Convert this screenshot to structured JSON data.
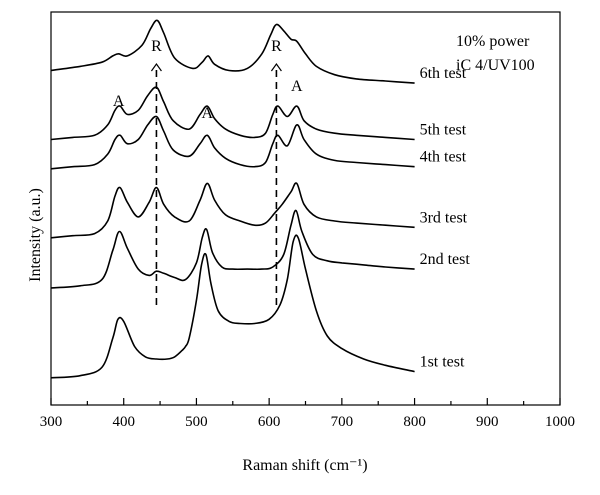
{
  "chart_data": {
    "type": "line",
    "xlabel": "Raman shift (cm⁻¹)",
    "ylabel": "Intensity (a.u.)",
    "xlim": [
      300,
      1000
    ],
    "x_ticks": [
      "300",
      "400",
      "500",
      "600",
      "700",
      "800",
      "900",
      "1000"
    ],
    "y_ticks": "none",
    "grid": false,
    "annotation_text": [
      "10% power",
      "iC 4/UV100"
    ],
    "peak_markers": [
      {
        "label": "A",
        "x": 393
      },
      {
        "label": "R",
        "x": 445
      },
      {
        "label": "A",
        "x": 515
      },
      {
        "label": "R",
        "x": 610
      },
      {
        "label": "A",
        "x": 638
      }
    ],
    "reference_lines_x": [
      445,
      610
    ],
    "series": [
      {
        "name": "1st test",
        "x": [
          300,
          340,
          370,
          385,
          392,
          400,
          415,
          430,
          445,
          460,
          470,
          480,
          485,
          490,
          500,
          507,
          513,
          520,
          530,
          545,
          560,
          580,
          600,
          615,
          625,
          633,
          640,
          650,
          665,
          680,
          700,
          730,
          760,
          800
        ],
        "y": [
          3,
          4,
          8,
          22,
          31,
          30,
          18,
          13,
          12,
          12,
          13,
          16,
          18,
          22,
          40,
          57,
          62,
          48,
          35,
          30,
          29,
          29,
          31,
          38,
          50,
          68,
          70,
          55,
          35,
          23,
          17,
          12,
          9,
          6
        ]
      },
      {
        "name": "2nd test",
        "x": [
          300,
          340,
          370,
          385,
          394,
          405,
          420,
          435,
          445,
          455,
          470,
          485,
          500,
          508,
          514,
          522,
          535,
          550,
          570,
          590,
          605,
          620,
          630,
          637,
          645,
          660,
          680,
          700,
          730,
          760,
          800
        ],
        "y": [
          46,
          47,
          50,
          64,
          73,
          65,
          55,
          52,
          54,
          53,
          51,
          50,
          58,
          70,
          74,
          63,
          56,
          55,
          55,
          55,
          56,
          62,
          76,
          83,
          73,
          62,
          59,
          58,
          57,
          56,
          55
        ]
      },
      {
        "name": "3rd test",
        "x": [
          300,
          330,
          360,
          378,
          388,
          395,
          405,
          420,
          435,
          445,
          455,
          470,
          490,
          505,
          515,
          525,
          540,
          560,
          580,
          595,
          608,
          618,
          630,
          638,
          648,
          665,
          690,
          720,
          760,
          800
        ],
        "y": [
          70,
          71,
          72,
          78,
          90,
          94,
          87,
          80,
          87,
          94,
          86,
          80,
          78,
          88,
          96,
          88,
          81,
          78,
          76,
          77,
          82,
          86,
          92,
          96,
          86,
          80,
          78,
          77,
          76,
          75
        ]
      },
      {
        "name": "4th test",
        "x": [
          300,
          330,
          360,
          378,
          388,
          395,
          405,
          420,
          433,
          445,
          455,
          468,
          490,
          505,
          515,
          525,
          540,
          560,
          580,
          595,
          605,
          612,
          625,
          638,
          648,
          665,
          690,
          720,
          760,
          800
        ],
        "y": [
          103,
          104,
          105,
          110,
          117,
          119,
          115,
          117,
          124,
          128,
          121,
          112,
          109,
          115,
          119,
          113,
          108,
          105,
          104,
          106,
          115,
          119,
          114,
          124,
          117,
          110,
          107,
          106,
          105,
          104
        ]
      },
      {
        "name": "5th test",
        "x": [
          300,
          330,
          360,
          378,
          388,
          395,
          405,
          420,
          433,
          445,
          455,
          468,
          490,
          505,
          515,
          525,
          540,
          560,
          580,
          595,
          605,
          612,
          625,
          638,
          648,
          665,
          690,
          720,
          760,
          800
        ],
        "y": [
          117,
          118,
          119,
          124,
          131,
          133,
          129,
          131,
          138,
          142,
          135,
          126,
          122,
          129,
          133,
          127,
          122,
          119,
          118,
          120,
          129,
          133,
          128,
          133,
          126,
          122,
          120,
          119,
          118,
          117
        ]
      },
      {
        "name": "6th test",
        "x": [
          300,
          340,
          370,
          385,
          393,
          405,
          425,
          437,
          446,
          455,
          470,
          495,
          508,
          516,
          525,
          545,
          570,
          590,
          602,
          610,
          620,
          630,
          638,
          650,
          665,
          690,
          720,
          760,
          800
        ],
        "y": [
          150,
          152,
          154,
          157,
          158,
          157,
          162,
          170,
          174,
          168,
          156,
          151,
          154,
          157,
          153,
          150,
          151,
          158,
          167,
          172,
          169,
          165,
          164,
          158,
          152,
          148,
          146,
          145,
          144
        ]
      }
    ]
  }
}
